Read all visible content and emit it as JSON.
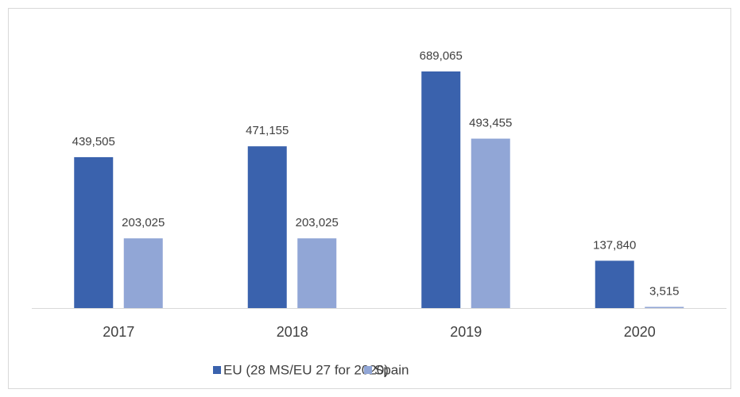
{
  "chart_data": {
    "type": "bar",
    "categories": [
      "2017",
      "2018",
      "2019",
      "2020"
    ],
    "series": [
      {
        "name": "EU (28 MS/EU 27 for 2020)",
        "color": "#3a62ad",
        "values": [
          439505,
          471155,
          689065,
          137840
        ],
        "value_labels": [
          "439,505",
          "471,155",
          "689,065",
          "137,840"
        ]
      },
      {
        "name": "Spain",
        "color": "#91a6d6",
        "values": [
          203025,
          203025,
          493455,
          3515
        ],
        "value_labels": [
          "203,025",
          "203,025",
          "493,455",
          "3,515"
        ]
      }
    ],
    "legend": "bottom"
  }
}
